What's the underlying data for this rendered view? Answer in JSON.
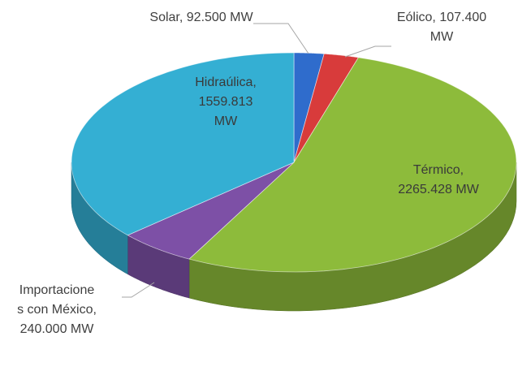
{
  "chart_data": {
    "type": "pie3d",
    "values": [
      92.5,
      107.4,
      2265.428,
      240,
      1559.813
    ],
    "value_labels": [
      "Solar, 92.500 MW",
      "Eólico, 107.400 MW",
      "Térmico, 2265.428 MW",
      "Importaciones con México, 240.000 MW",
      "Hidraúlica, 1559.813 MW"
    ],
    "colors": [
      "#2f6ccc",
      "#d83b3b",
      "#8dbb3b",
      "#7d50a6",
      "#34afd3"
    ]
  }
}
